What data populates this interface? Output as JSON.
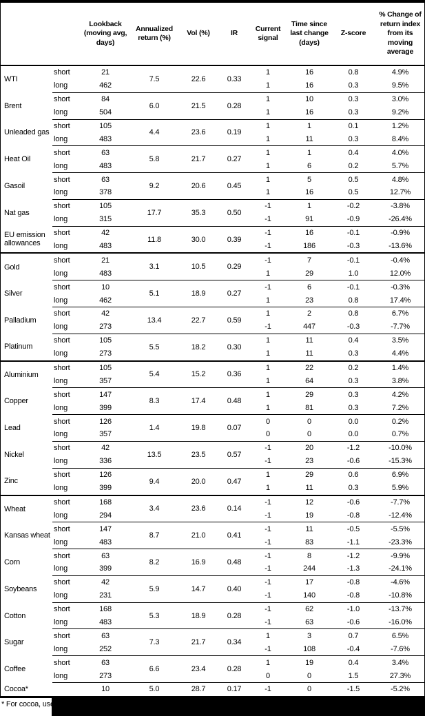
{
  "colors": {
    "text": "#000000",
    "background": "#ffffff",
    "border": "#000000",
    "redaction": "#000000"
  },
  "chart_data": {
    "type": "table",
    "headers": [
      "Lookback (moving avg, days)",
      "Annualized return (%)",
      "Vol (%)",
      "IR",
      "Current signal",
      "Time since last change (days)",
      "Z-score",
      "% Change of return index from its moving average"
    ],
    "groups": [
      {
        "name": "WTI",
        "group_start": false,
        "ann": "7.5",
        "vol": "22.6",
        "ir": "0.33",
        "legs": [
          {
            "leg": "short",
            "lookback": "21",
            "signal": "1",
            "days": "16",
            "z": "0.8",
            "chg": "4.9%"
          },
          {
            "leg": "long",
            "lookback": "462",
            "signal": "1",
            "days": "16",
            "z": "0.3",
            "chg": "9.5%"
          }
        ]
      },
      {
        "name": "Brent",
        "group_start": false,
        "ann": "6.0",
        "vol": "21.5",
        "ir": "0.28",
        "legs": [
          {
            "leg": "short",
            "lookback": "84",
            "signal": "1",
            "days": "10",
            "z": "0.3",
            "chg": "3.0%"
          },
          {
            "leg": "long",
            "lookback": "504",
            "signal": "1",
            "days": "16",
            "z": "0.3",
            "chg": "9.2%"
          }
        ]
      },
      {
        "name": "Unleaded gas",
        "group_start": false,
        "ann": "4.4",
        "vol": "23.6",
        "ir": "0.19",
        "legs": [
          {
            "leg": "short",
            "lookback": "105",
            "signal": "1",
            "days": "1",
            "z": "0.1",
            "chg": "1.2%"
          },
          {
            "leg": "long",
            "lookback": "483",
            "signal": "1",
            "days": "11",
            "z": "0.3",
            "chg": "8.4%"
          }
        ]
      },
      {
        "name": "Heat Oil",
        "group_start": false,
        "ann": "5.8",
        "vol": "21.7",
        "ir": "0.27",
        "legs": [
          {
            "leg": "short",
            "lookback": "63",
            "signal": "1",
            "days": "1",
            "z": "0.4",
            "chg": "4.0%"
          },
          {
            "leg": "long",
            "lookback": "483",
            "signal": "1",
            "days": "6",
            "z": "0.2",
            "chg": "5.7%"
          }
        ]
      },
      {
        "name": "Gasoil",
        "group_start": false,
        "ann": "9.2",
        "vol": "20.6",
        "ir": "0.45",
        "legs": [
          {
            "leg": "short",
            "lookback": "63",
            "signal": "1",
            "days": "5",
            "z": "0.5",
            "chg": "4.8%"
          },
          {
            "leg": "long",
            "lookback": "378",
            "signal": "1",
            "days": "16",
            "z": "0.5",
            "chg": "12.7%"
          }
        ]
      },
      {
        "name": "Nat gas",
        "group_start": false,
        "ann": "17.7",
        "vol": "35.3",
        "ir": "0.50",
        "legs": [
          {
            "leg": "short",
            "lookback": "105",
            "signal": "-1",
            "days": "1",
            "z": "-0.2",
            "chg": "-3.8%"
          },
          {
            "leg": "long",
            "lookback": "315",
            "signal": "-1",
            "days": "91",
            "z": "-0.9",
            "chg": "-26.4%"
          }
        ]
      },
      {
        "name": "EU emission allowances",
        "group_start": false,
        "ann": "11.8",
        "vol": "30.0",
        "ir": "0.39",
        "legs": [
          {
            "leg": "short",
            "lookback": "42",
            "signal": "-1",
            "days": "16",
            "z": "-0.1",
            "chg": "-0.9%"
          },
          {
            "leg": "long",
            "lookback": "483",
            "signal": "-1",
            "days": "186",
            "z": "-0.3",
            "chg": "-13.6%"
          }
        ]
      },
      {
        "name": "Gold",
        "group_start": true,
        "ann": "3.1",
        "vol": "10.5",
        "ir": "0.29",
        "legs": [
          {
            "leg": "short",
            "lookback": "21",
            "signal": "-1",
            "days": "7",
            "z": "-0.1",
            "chg": "-0.4%"
          },
          {
            "leg": "long",
            "lookback": "483",
            "signal": "1",
            "days": "29",
            "z": "1.0",
            "chg": "12.0%"
          }
        ]
      },
      {
        "name": "Silver",
        "group_start": false,
        "ann": "5.1",
        "vol": "18.9",
        "ir": "0.27",
        "legs": [
          {
            "leg": "short",
            "lookback": "10",
            "signal": "-1",
            "days": "6",
            "z": "-0.1",
            "chg": "-0.3%"
          },
          {
            "leg": "long",
            "lookback": "462",
            "signal": "1",
            "days": "23",
            "z": "0.8",
            "chg": "17.4%"
          }
        ]
      },
      {
        "name": "Palladium",
        "group_start": false,
        "ann": "13.4",
        "vol": "22.7",
        "ir": "0.59",
        "legs": [
          {
            "leg": "short",
            "lookback": "42",
            "signal": "1",
            "days": "2",
            "z": "0.8",
            "chg": "6.7%"
          },
          {
            "leg": "long",
            "lookback": "273",
            "signal": "-1",
            "days": "447",
            "z": "-0.3",
            "chg": "-7.7%"
          }
        ]
      },
      {
        "name": "Platinum",
        "group_start": false,
        "ann": "5.5",
        "vol": "18.2",
        "ir": "0.30",
        "legs": [
          {
            "leg": "short",
            "lookback": "105",
            "signal": "1",
            "days": "11",
            "z": "0.4",
            "chg": "3.5%"
          },
          {
            "leg": "long",
            "lookback": "273",
            "signal": "1",
            "days": "11",
            "z": "0.3",
            "chg": "4.4%"
          }
        ]
      },
      {
        "name": "Aluminium",
        "group_start": true,
        "ann": "5.4",
        "vol": "15.2",
        "ir": "0.36",
        "legs": [
          {
            "leg": "short",
            "lookback": "105",
            "signal": "1",
            "days": "22",
            "z": "0.2",
            "chg": "1.4%"
          },
          {
            "leg": "long",
            "lookback": "357",
            "signal": "1",
            "days": "64",
            "z": "0.3",
            "chg": "3.8%"
          }
        ]
      },
      {
        "name": "Copper",
        "group_start": false,
        "ann": "8.3",
        "vol": "17.4",
        "ir": "0.48",
        "legs": [
          {
            "leg": "short",
            "lookback": "147",
            "signal": "1",
            "days": "29",
            "z": "0.3",
            "chg": "4.2%"
          },
          {
            "leg": "long",
            "lookback": "399",
            "signal": "1",
            "days": "81",
            "z": "0.3",
            "chg": "7.2%"
          }
        ]
      },
      {
        "name": "Lead",
        "group_start": false,
        "ann": "1.4",
        "vol": "19.8",
        "ir": "0.07",
        "legs": [
          {
            "leg": "short",
            "lookback": "126",
            "signal": "0",
            "days": "0",
            "z": "0.0",
            "chg": "0.2%"
          },
          {
            "leg": "long",
            "lookback": "357",
            "signal": "0",
            "days": "0",
            "z": "0.0",
            "chg": "0.7%"
          }
        ]
      },
      {
        "name": "Nickel",
        "group_start": false,
        "ann": "13.5",
        "vol": "23.5",
        "ir": "0.57",
        "legs": [
          {
            "leg": "short",
            "lookback": "42",
            "signal": "-1",
            "days": "20",
            "z": "-1.2",
            "chg": "-10.0%"
          },
          {
            "leg": "long",
            "lookback": "336",
            "signal": "-1",
            "days": "23",
            "z": "-0.6",
            "chg": "-15.3%"
          }
        ]
      },
      {
        "name": "Zinc",
        "group_start": false,
        "ann": "9.4",
        "vol": "20.0",
        "ir": "0.47",
        "legs": [
          {
            "leg": "short",
            "lookback": "126",
            "signal": "1",
            "days": "29",
            "z": "0.6",
            "chg": "6.9%"
          },
          {
            "leg": "long",
            "lookback": "399",
            "signal": "1",
            "days": "11",
            "z": "0.3",
            "chg": "5.9%"
          }
        ]
      },
      {
        "name": "Wheat",
        "group_start": true,
        "ann": "3.4",
        "vol": "23.6",
        "ir": "0.14",
        "legs": [
          {
            "leg": "short",
            "lookback": "168",
            "signal": "-1",
            "days": "12",
            "z": "-0.6",
            "chg": "-7.7%"
          },
          {
            "leg": "long",
            "lookback": "294",
            "signal": "-1",
            "days": "19",
            "z": "-0.8",
            "chg": "-12.4%"
          }
        ]
      },
      {
        "name": "Kansas wheat",
        "group_start": false,
        "ann": "8.7",
        "vol": "21.0",
        "ir": "0.41",
        "legs": [
          {
            "leg": "short",
            "lookback": "147",
            "signal": "-1",
            "days": "11",
            "z": "-0.5",
            "chg": "-5.5%"
          },
          {
            "leg": "long",
            "lookback": "483",
            "signal": "-1",
            "days": "83",
            "z": "-1.1",
            "chg": "-23.3%"
          }
        ]
      },
      {
        "name": "Corn",
        "group_start": false,
        "ann": "8.2",
        "vol": "16.9",
        "ir": "0.48",
        "legs": [
          {
            "leg": "short",
            "lookback": "63",
            "signal": "-1",
            "days": "8",
            "z": "-1.2",
            "chg": "-9.9%"
          },
          {
            "leg": "long",
            "lookback": "399",
            "signal": "-1",
            "days": "244",
            "z": "-1.3",
            "chg": "-24.1%"
          }
        ]
      },
      {
        "name": "Soybeans",
        "group_start": false,
        "ann": "5.9",
        "vol": "14.7",
        "ir": "0.40",
        "legs": [
          {
            "leg": "short",
            "lookback": "42",
            "signal": "-1",
            "days": "17",
            "z": "-0.8",
            "chg": "-4.6%"
          },
          {
            "leg": "long",
            "lookback": "231",
            "signal": "-1",
            "days": "140",
            "z": "-0.8",
            "chg": "-10.8%"
          }
        ]
      },
      {
        "name": "Cotton",
        "group_start": false,
        "ann": "5.3",
        "vol": "18.9",
        "ir": "0.28",
        "legs": [
          {
            "leg": "short",
            "lookback": "168",
            "signal": "-1",
            "days": "62",
            "z": "-1.0",
            "chg": "-13.7%"
          },
          {
            "leg": "long",
            "lookback": "483",
            "signal": "-1",
            "days": "63",
            "z": "-0.6",
            "chg": "-16.0%"
          }
        ]
      },
      {
        "name": "Sugar",
        "group_start": false,
        "ann": "7.3",
        "vol": "21.7",
        "ir": "0.34",
        "legs": [
          {
            "leg": "short",
            "lookback": "63",
            "signal": "1",
            "days": "3",
            "z": "0.7",
            "chg": "6.5%"
          },
          {
            "leg": "long",
            "lookback": "252",
            "signal": "-1",
            "days": "108",
            "z": "-0.4",
            "chg": "-7.6%"
          }
        ]
      },
      {
        "name": "Coffee",
        "group_start": false,
        "ann": "6.6",
        "vol": "23.4",
        "ir": "0.28",
        "legs": [
          {
            "leg": "short",
            "lookback": "63",
            "signal": "1",
            "days": "19",
            "z": "0.4",
            "chg": "3.4%"
          },
          {
            "leg": "long",
            "lookback": "273",
            "signal": "0",
            "days": "0",
            "z": "1.5",
            "chg": "27.3%"
          }
        ]
      },
      {
        "name": "Cocoa*",
        "group_start": false,
        "ann": "5.0",
        "vol": "28.7",
        "ir": "0.17",
        "legs": [
          {
            "leg": "",
            "lookback": "10",
            "signal": "-1",
            "days": "0",
            "z": "-1.5",
            "chg": "-5.2%"
          }
        ]
      }
    ],
    "footnote": "* For cocoa, uses c"
  }
}
